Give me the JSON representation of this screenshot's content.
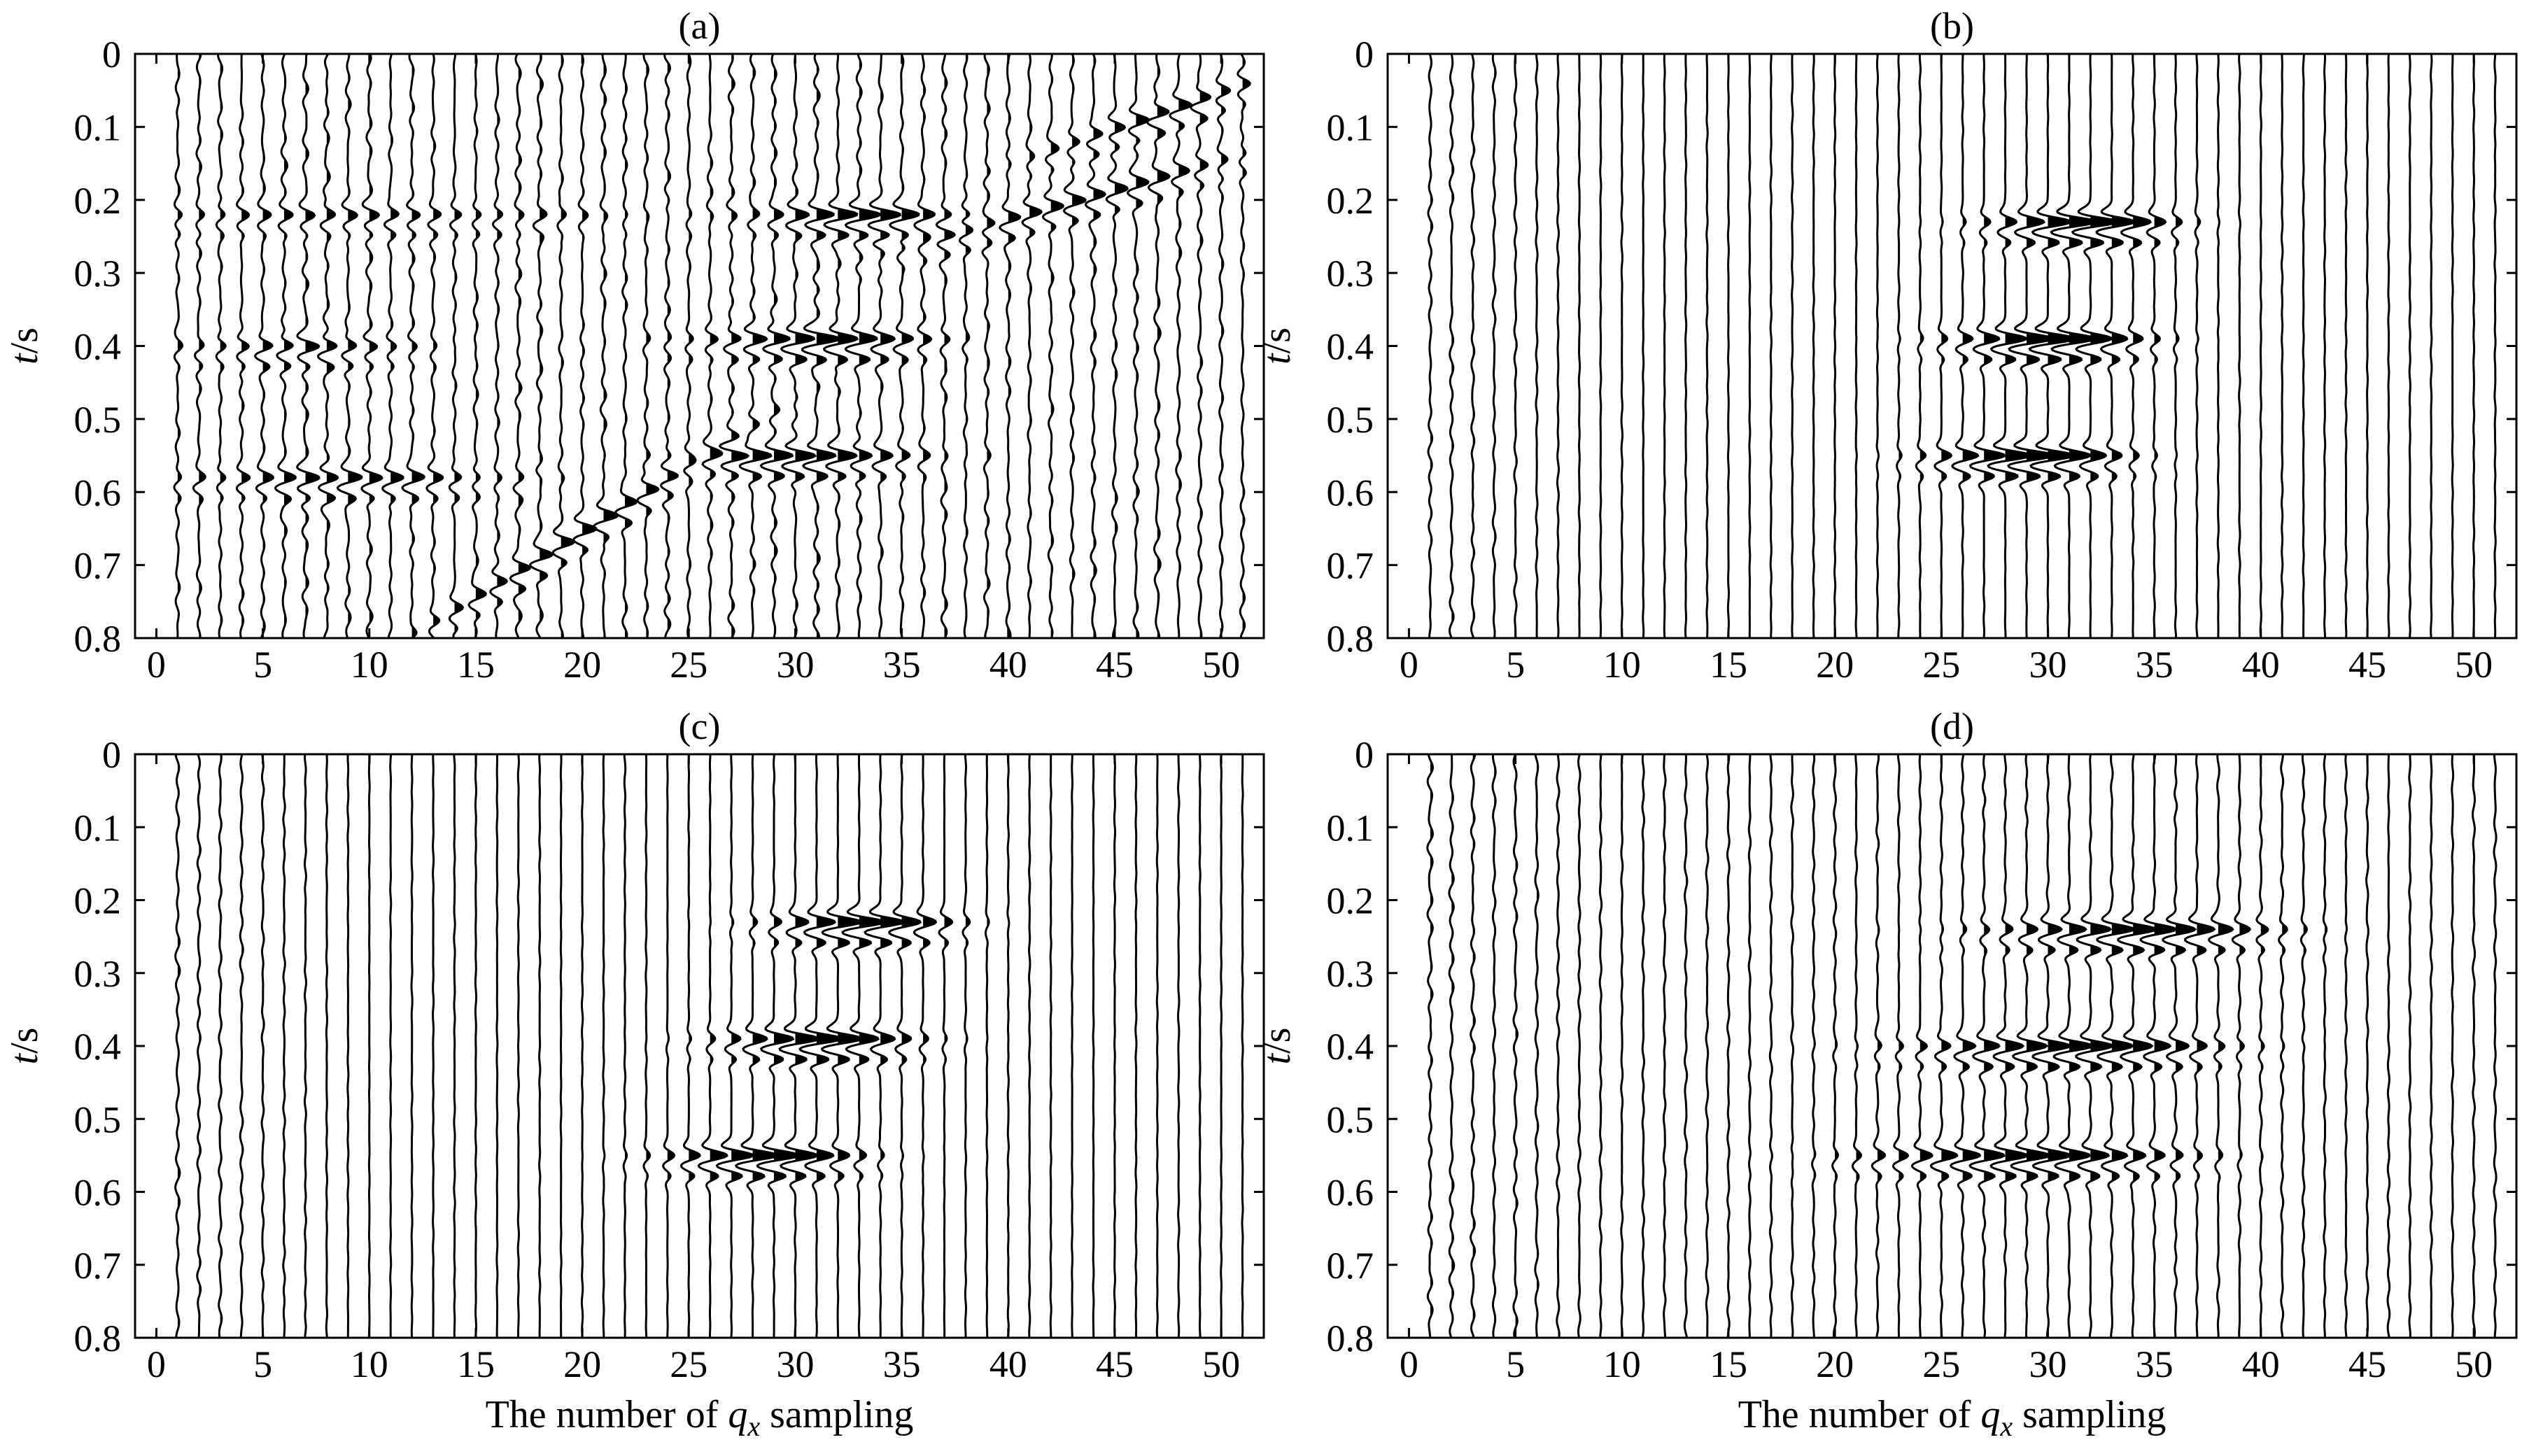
{
  "figure": {
    "xlabel_prefix": "The number of ",
    "xlabel_var": "q",
    "xlabel_sub": "x",
    "xlabel_suffix": " sampling",
    "ylabel_italic": "t",
    "ylabel_unit": "/s"
  },
  "chart_data": [
    {
      "type": "wiggle",
      "title": "(a)",
      "x_ticks": [
        0,
        5,
        10,
        15,
        20,
        25,
        30,
        35,
        40,
        45,
        50
      ],
      "y_ticks": [
        "0",
        "0.1",
        "0.2",
        "0.3",
        "0.4",
        "0.5",
        "0.6",
        "0.7",
        "0.8"
      ],
      "xlim": [
        -1,
        52
      ],
      "ylim": [
        0,
        0.8
      ],
      "traces": 51,
      "noise": 0.9,
      "shows_ylabel": true,
      "shows_xlabel": false,
      "events": [
        {
          "center": 6.8,
          "t": 0.4,
          "slope": 0.0,
          "amp": 1.0,
          "spread": 3.5
        },
        {
          "center": 9.0,
          "t": 0.58,
          "slope": 0.0,
          "amp": 1.1,
          "spread": 5.0
        },
        {
          "center": 20.0,
          "t": 0.65,
          "slope": -0.018,
          "amp": 1.1,
          "spread": 6.0
        },
        {
          "center": 30.0,
          "t": 0.55,
          "slope": 0.0,
          "amp": 1.8,
          "spread": 3.5
        },
        {
          "center": 31.0,
          "t": 0.39,
          "slope": 0.0,
          "amp": 1.8,
          "spread": 3.5
        },
        {
          "center": 33.0,
          "t": 0.22,
          "slope": 0.0,
          "amp": 1.8,
          "spread": 3.0
        },
        {
          "center": 43.0,
          "t": 0.2,
          "slope": -0.008,
          "amp": 1.1,
          "spread": 6.0
        },
        {
          "center": 47.0,
          "t": 0.08,
          "slope": -0.01,
          "amp": 1.1,
          "spread": 4.0
        },
        {
          "center": 10.0,
          "t": 0.22,
          "slope": 0.0,
          "amp": 0.7,
          "spread": 8.0
        }
      ]
    },
    {
      "type": "wiggle",
      "title": "(b)",
      "x_ticks": [
        0,
        5,
        10,
        15,
        20,
        25,
        30,
        35,
        40,
        45,
        50
      ],
      "y_ticks": [
        "0",
        "0.1",
        "0.2",
        "0.3",
        "0.4",
        "0.5",
        "0.6",
        "0.7",
        "0.8"
      ],
      "xlim": [
        -1,
        52
      ],
      "ylim": [
        0,
        0.8
      ],
      "traces": 51,
      "noise": 0.15,
      "shows_ylabel": true,
      "shows_xlabel": false,
      "events": [
        {
          "center": 31.5,
          "t": 0.23,
          "slope": 0.0,
          "amp": 2.4,
          "spread": 2.6
        },
        {
          "center": 30.0,
          "t": 0.39,
          "slope": 0.0,
          "amp": 2.4,
          "spread": 2.8
        },
        {
          "center": 29.0,
          "t": 0.55,
          "slope": 0.0,
          "amp": 2.4,
          "spread": 2.8
        }
      ]
    },
    {
      "type": "wiggle",
      "title": "(c)",
      "x_ticks": [
        0,
        5,
        10,
        15,
        20,
        25,
        30,
        35,
        40,
        45,
        50
      ],
      "y_ticks": [
        "0",
        "0.1",
        "0.2",
        "0.3",
        "0.4",
        "0.5",
        "0.6",
        "0.7",
        "0.8"
      ],
      "xlim": [
        -1,
        52
      ],
      "ylim": [
        0,
        0.8
      ],
      "traces": 51,
      "noise": 0.15,
      "shows_ylabel": true,
      "shows_xlabel": true,
      "events": [
        {
          "center": 33.0,
          "t": 0.23,
          "slope": 0.0,
          "amp": 2.2,
          "spread": 2.6
        },
        {
          "center": 31.0,
          "t": 0.39,
          "slope": 0.0,
          "amp": 2.2,
          "spread": 2.8
        },
        {
          "center": 28.5,
          "t": 0.55,
          "slope": 0.0,
          "amp": 2.2,
          "spread": 2.8
        }
      ]
    },
    {
      "type": "wiggle",
      "title": "(d)",
      "x_ticks": [
        0,
        5,
        10,
        15,
        20,
        25,
        30,
        35,
        40,
        45,
        50
      ],
      "y_ticks": [
        "0",
        "0.1",
        "0.2",
        "0.3",
        "0.4",
        "0.5",
        "0.6",
        "0.7",
        "0.8"
      ],
      "xlim": [
        -1,
        52
      ],
      "ylim": [
        0,
        0.8
      ],
      "traces": 51,
      "noise": 0.35,
      "shows_ylabel": true,
      "shows_xlabel": true,
      "events": [
        {
          "center": 34.0,
          "t": 0.24,
          "slope": 0.0,
          "amp": 2.0,
          "spread": 4.0
        },
        {
          "center": 31.0,
          "t": 0.4,
          "slope": 0.0,
          "amp": 2.0,
          "spread": 4.5
        },
        {
          "center": 29.0,
          "t": 0.55,
          "slope": 0.0,
          "amp": 2.0,
          "spread": 4.5
        }
      ]
    }
  ]
}
